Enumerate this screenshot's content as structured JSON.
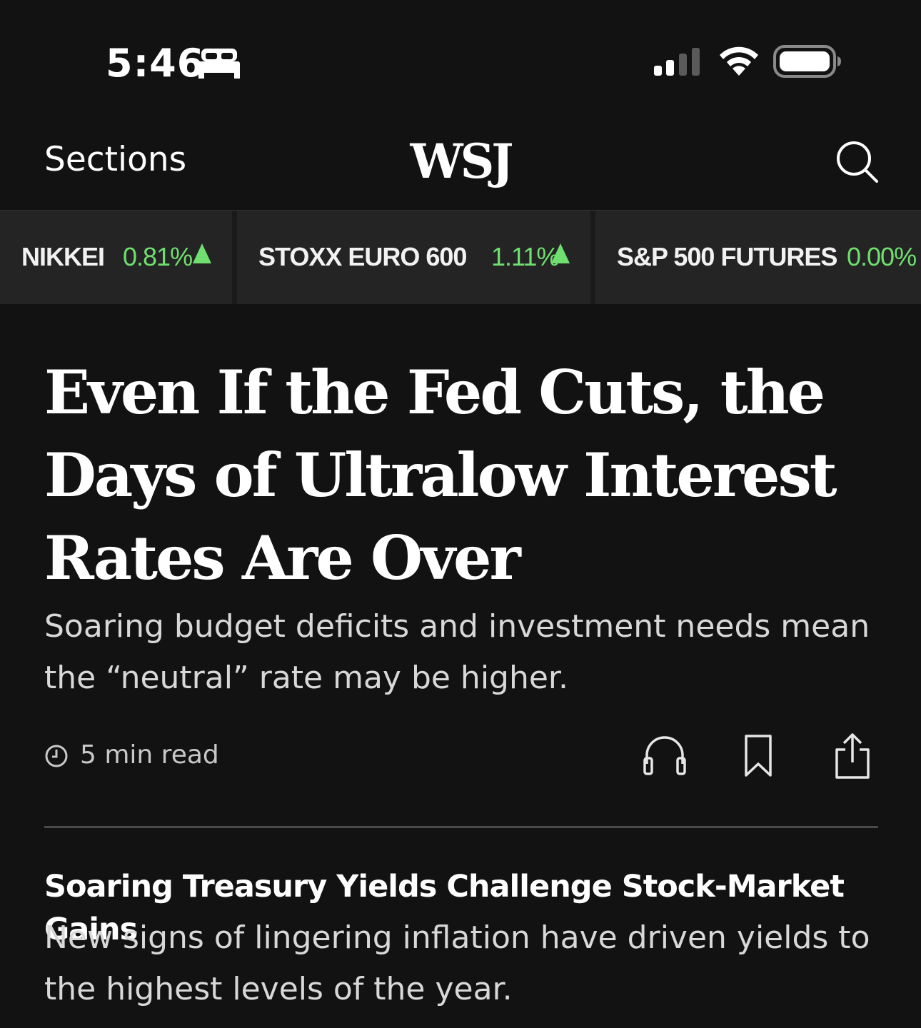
{
  "status_bar": {
    "time": "5:46",
    "icons": [
      "bed-icon",
      "cellular-signal-icon",
      "wifi-icon",
      "battery-icon"
    ]
  },
  "nav": {
    "sections_label": "Sections",
    "logo": "WSJ",
    "search_icon": "search-icon"
  },
  "ticker": [
    {
      "name": "NIKKEI",
      "change": "0.81%",
      "direction": "up"
    },
    {
      "name": "STOXX EURO 600",
      "change": "1.11%",
      "direction": "up"
    },
    {
      "name": "S&P 500 FUTURES",
      "change": "0.00%",
      "direction": "flat"
    }
  ],
  "colors": {
    "background": "#121212",
    "ticker_positive": "#6fe06f",
    "ticker_bg": "#242424"
  },
  "main_article": {
    "headline": "Even If the Fed Cuts, the Days of Ultralow Interest Rates Are Over",
    "dek": "Soaring budget deficits and investment needs mean the “neutral” rate may be higher.",
    "read_time": "5 min read",
    "actions": [
      "headphones-icon",
      "bookmark-icon",
      "share-icon"
    ]
  },
  "second_article": {
    "headline": "Soaring Treasury Yields Challenge Stock-Market Gains",
    "dek": "New signs of lingering inflation have driven yields to the highest levels of the year."
  }
}
